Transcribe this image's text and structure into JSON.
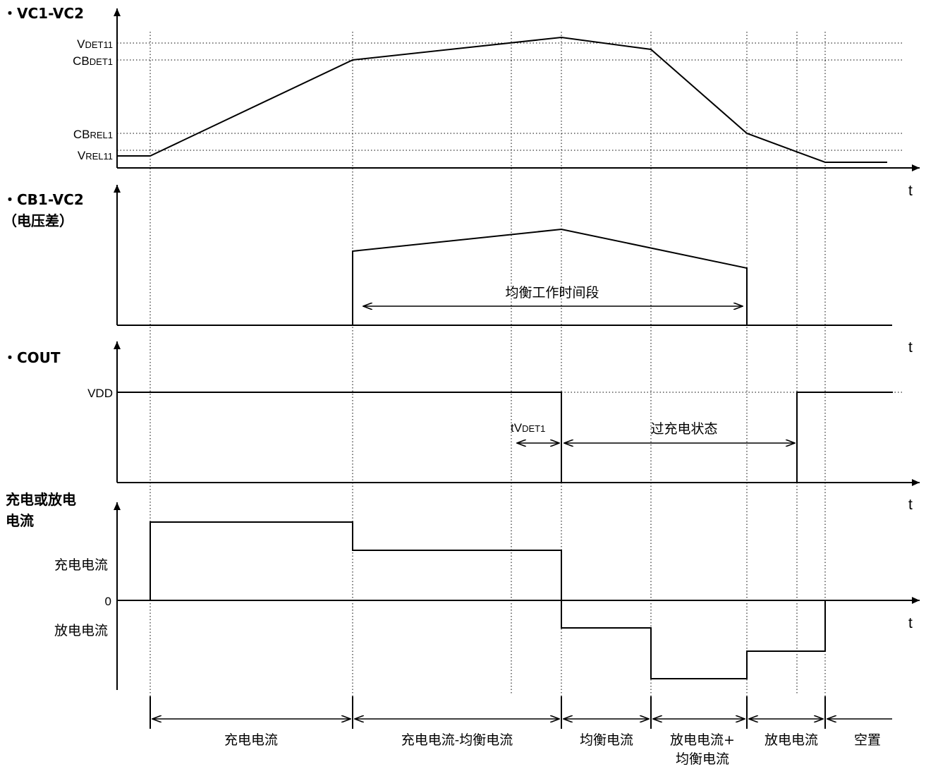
{
  "panels": {
    "p1": {
      "title": "・VC1-VC2",
      "levels": {
        "vdet_main": "V",
        "vdet_sub": "DET11",
        "cbdet_main": "CB",
        "cbdet_sub": "DET1",
        "cbrel_main": "CB",
        "cbrel_sub": "REL1",
        "vrel_main": "V",
        "vrel_sub": "REL11"
      },
      "axis_t": "t"
    },
    "p2": {
      "title_line1": "・CB1-VC2",
      "title_line2": "（电压差）",
      "span_label": "均衡工作时间段",
      "axis_t": "t"
    },
    "p3": {
      "title": "・COUT",
      "vdd": "VDD",
      "tvdet_main": "tV",
      "tvdet_sub": "DET1",
      "overcharge": "过充电状态",
      "axis_t": "t"
    },
    "p4": {
      "title_line1": "充电或放电",
      "title_line2": "电流",
      "charge": "充电电流",
      "zero": "0",
      "discharge": "放电电流",
      "axis_t": "t"
    }
  },
  "phases": [
    {
      "label": "充电电流"
    },
    {
      "label": "充电电流-均衡电流"
    },
    {
      "label": "均衡电流"
    },
    {
      "label_line1": "放电电流+",
      "label_line2": "均衡电流"
    },
    {
      "label": "放电电流"
    },
    {
      "label": "空置"
    }
  ]
}
